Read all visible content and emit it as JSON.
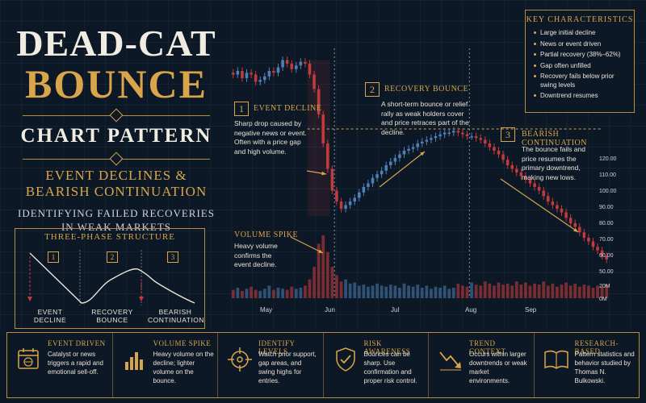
{
  "title": {
    "line1": "DEAD-CAT",
    "line2": "BOUNCE",
    "line3": "CHART PATTERN",
    "subtitle": "EVENT DECLINES & BEARISH CONTINUATION",
    "tagline": "IDENTIFYING FAILED RECOVERIES IN WEAK MARKETS"
  },
  "phases": {
    "title": "THREE-PHASE STRUCTURE",
    "items": [
      {
        "num": "1",
        "label": "EVENT DECLINE"
      },
      {
        "num": "2",
        "label": "RECOVERY BOUNCE"
      },
      {
        "num": "3",
        "label": "BEARISH CONTINUATION"
      }
    ]
  },
  "annotations": {
    "a1": {
      "num": "1",
      "title": "EVENT DECLINE",
      "text": "Sharp drop caused by negative news or event. Often with a price gap and high volume."
    },
    "a2": {
      "num": "2",
      "title": "RECOVERY BOUNCE",
      "text": "A short-term bounce or relief rally as weak holders cover and price retraces part of the decline."
    },
    "a3": {
      "num": "3",
      "title": "BEARISH CONTINUATION",
      "text": "The bounce fails and price resumes the primary downtrend, making new lows."
    },
    "volume": {
      "title": "VOLUME SPIKE",
      "text": "Heavy volume confirms the event decline."
    }
  },
  "key": {
    "title": "KEY CHARACTERISTICS",
    "items": [
      "Large initial decline",
      "News or event driven",
      "Partial recovery (38%–62%)",
      "Gap often unfilled",
      "Recovery fails below prior swing levels",
      "Downtrend resumes"
    ]
  },
  "features": [
    {
      "icon": "calendar-globe-icon",
      "title": "EVENT DRIVEN",
      "text": "Catalyst or news triggers a rapid and emotional sell-off."
    },
    {
      "icon": "volume-bars-icon",
      "title": "VOLUME SPIKE",
      "text": "Heavy volume on the decline; lighter volume on the bounce."
    },
    {
      "icon": "crosshair-icon",
      "title": "IDENTIFY LEVELS",
      "text": "Watch prior support, gap areas, and swing highs for entries."
    },
    {
      "icon": "shield-check-icon",
      "title": "RISK AWARENESS",
      "text": "Bounces can be sharp. Use confirmation and proper risk control."
    },
    {
      "icon": "trend-arrow-icon",
      "title": "TREND CONTEXT",
      "text": "Occurs within larger downtrends or weak market environments."
    },
    {
      "icon": "book-icon",
      "title": "RESEARCH-BASED",
      "text": "Pattern statistics and behavior studied by Thomas N. Bulkowski."
    }
  ],
  "chart_data": {
    "type": "candlestick",
    "x_labels": [
      "May",
      "Jun",
      "Jul",
      "Aug",
      "Sep"
    ],
    "y_ticks": [
      "120.00",
      "110.00",
      "100.00",
      "90.00",
      "80.00",
      "70.00",
      "60.00",
      "50.00",
      "40.00"
    ],
    "volume_ticks": [
      "20M",
      "0M"
    ],
    "ylim": [
      40,
      120
    ],
    "grid": true,
    "colors": {
      "up": "#4f7fb5",
      "down": "#c23b3b",
      "accent": "#d9a54a"
    },
    "close_series": [
      150,
      152,
      148,
      151,
      150,
      146,
      147,
      149,
      152,
      151,
      154,
      158,
      156,
      153,
      155,
      157,
      156,
      150,
      142,
      128,
      112,
      98,
      86,
      80,
      76,
      78,
      80,
      82,
      85,
      88,
      90,
      93,
      95,
      97,
      100,
      102,
      104,
      106,
      108,
      109,
      110,
      112,
      113,
      114,
      115,
      116,
      117,
      118,
      118,
      119,
      118,
      117,
      116,
      116,
      115,
      114,
      112,
      110,
      108,
      106,
      103,
      100,
      98,
      96,
      94,
      92,
      90,
      88,
      86,
      83,
      80,
      78,
      76,
      74,
      71,
      68,
      66,
      63,
      60,
      58,
      55,
      53,
      50,
      48
    ],
    "volume_series": [
      8,
      10,
      7,
      9,
      11,
      8,
      7,
      9,
      12,
      8,
      10,
      9,
      8,
      11,
      9,
      10,
      12,
      18,
      30,
      52,
      60,
      44,
      30,
      22,
      16,
      18,
      14,
      15,
      12,
      13,
      11,
      12,
      14,
      12,
      11,
      13,
      12,
      10,
      14,
      12,
      11,
      13,
      10,
      12,
      9,
      11,
      10,
      12,
      9,
      10,
      14,
      12,
      11,
      15,
      13,
      12,
      16,
      14,
      12,
      15,
      13,
      14,
      12,
      16,
      13,
      15,
      12,
      14,
      13,
      16,
      12,
      14,
      11,
      13,
      15,
      12,
      14,
      11,
      13,
      12,
      10,
      12,
      11,
      13
    ]
  }
}
